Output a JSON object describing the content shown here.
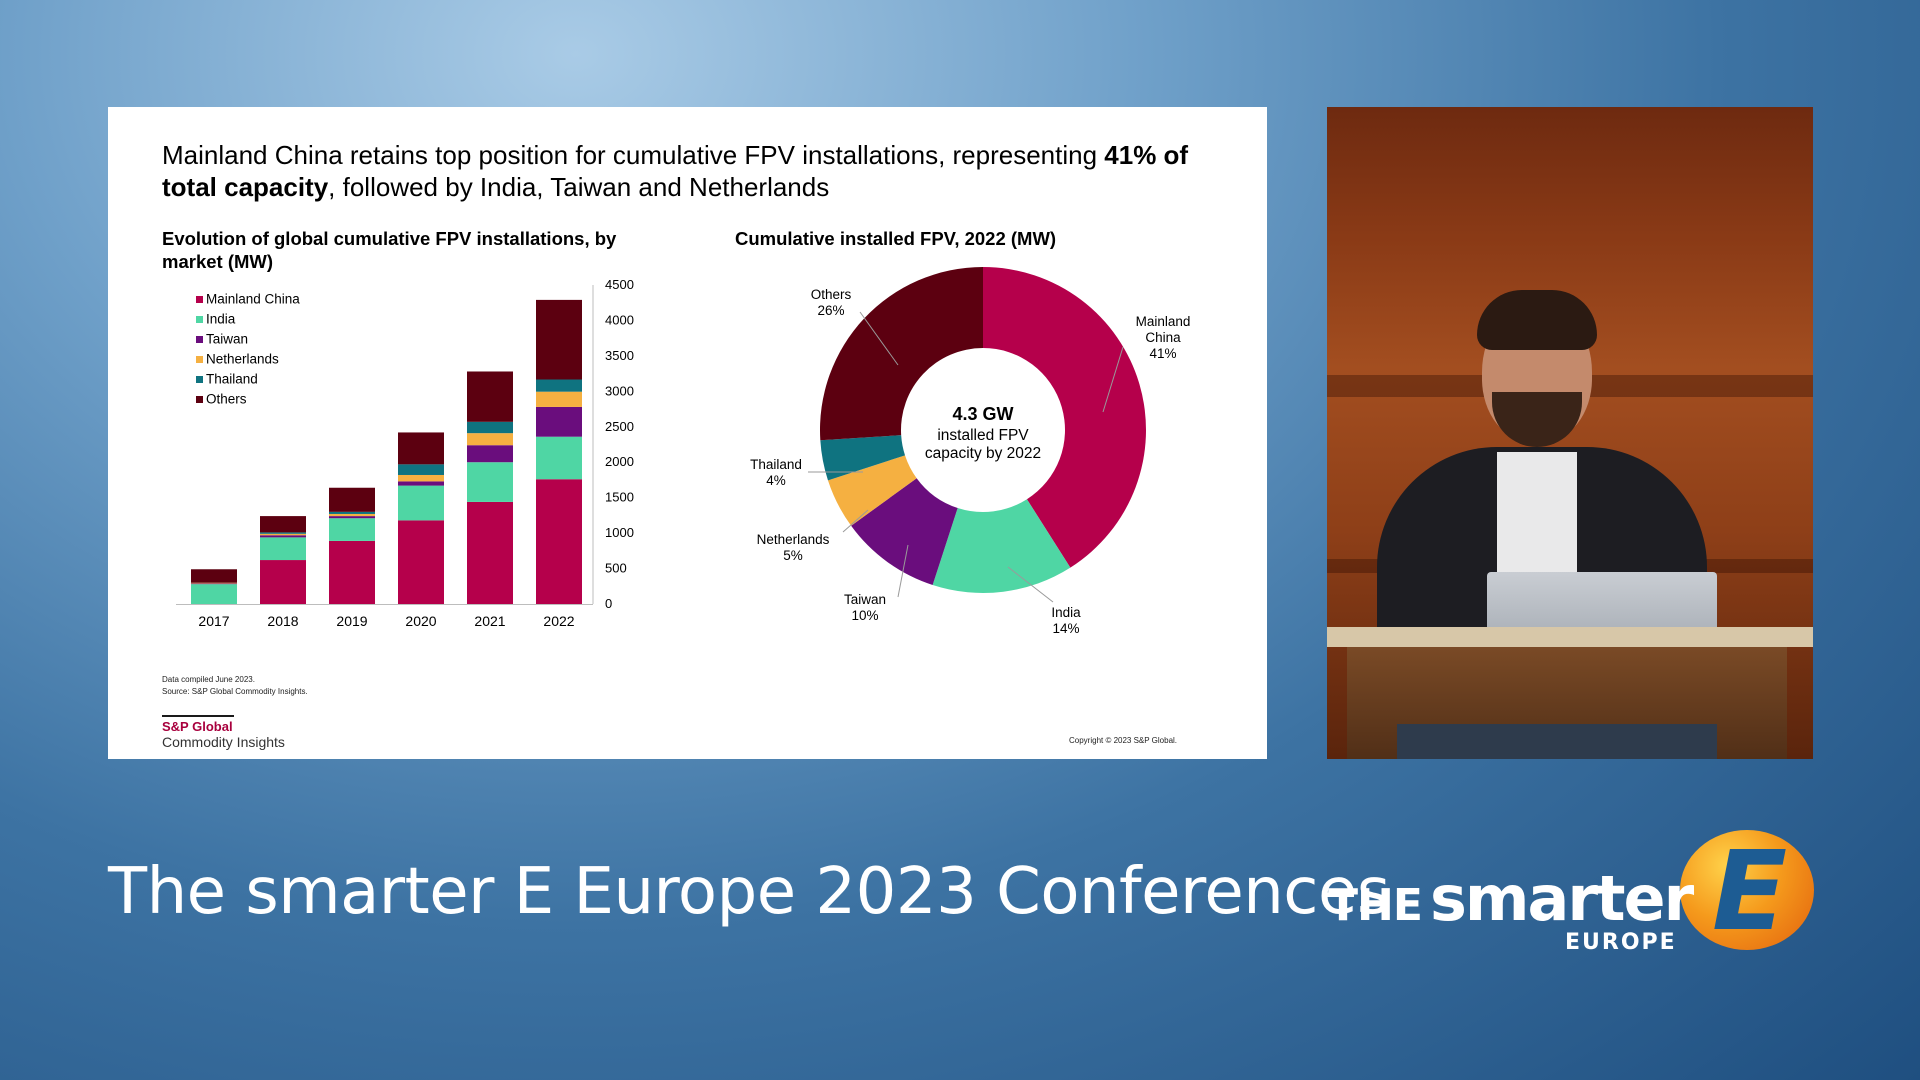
{
  "slide": {
    "headline_part1": "Mainland China retains top position for cumulative FPV installations, representing ",
    "headline_bold": "41% of total capacity",
    "headline_part2": ", followed by India, Taiwan and Netherlands",
    "note_compiled": "Data compiled June 2023.",
    "note_source": "Source: S&P Global Commodity Insights.",
    "brand_name": "S&P Global",
    "brand_sub": "Commodity Insights",
    "copyright": "Copyright © 2023 S&P Global."
  },
  "footer": {
    "conference_title": "The smarter E Europe 2023 Conferences",
    "logo_the": "THE",
    "logo_smarter": "smarter",
    "logo_europe": "EUROPE",
    "logo_letter": "E"
  },
  "chart_data": [
    {
      "type": "bar",
      "stacked": true,
      "title": "Evolution of global cumulative FPV installations, by market (MW)",
      "categories": [
        "2017",
        "2018",
        "2019",
        "2020",
        "2021",
        "2022"
      ],
      "series": [
        {
          "name": "Mainland China",
          "color": "#b5004b",
          "values": [
            0,
            620,
            890,
            1180,
            1440,
            1760
          ]
        },
        {
          "name": "India",
          "color": "#4fd6a4",
          "values": [
            280,
            320,
            320,
            490,
            560,
            600
          ]
        },
        {
          "name": "Taiwan",
          "color": "#6a0d7d",
          "values": [
            10,
            30,
            30,
            60,
            240,
            420
          ]
        },
        {
          "name": "Netherlands",
          "color": "#f5b041",
          "values": [
            10,
            20,
            30,
            90,
            170,
            215
          ]
        },
        {
          "name": "Thailand",
          "color": "#0f7380",
          "values": [
            0,
            20,
            30,
            150,
            160,
            172
          ]
        },
        {
          "name": "Others",
          "color": "#5c0010",
          "values": [
            190,
            230,
            340,
            450,
            710,
            1123
          ]
        }
      ],
      "yticks": [
        0,
        500,
        1000,
        1500,
        2000,
        2500,
        3000,
        3500,
        4000,
        4500
      ],
      "ylim": [
        0,
        4500
      ],
      "y_axis_side": "right",
      "legend": "top-left"
    },
    {
      "type": "pie",
      "donut": true,
      "title": "Cumulative installed FPV, 2022 (MW)",
      "center_value": "4.3 GW",
      "center_text_1": "installed FPV",
      "center_text_2": "capacity by 2022",
      "slices": [
        {
          "label_1": "Mainland",
          "label_2": "China",
          "pct_label": "41%",
          "value": 41,
          "color": "#b5004b"
        },
        {
          "label_1": "India",
          "label_2": "",
          "pct_label": "14%",
          "value": 14,
          "color": "#4fd6a4"
        },
        {
          "label_1": "Taiwan",
          "label_2": "",
          "pct_label": "10%",
          "value": 10,
          "color": "#6a0d7d"
        },
        {
          "label_1": "Netherlands",
          "label_2": "",
          "pct_label": "5%",
          "value": 5,
          "color": "#f5b041"
        },
        {
          "label_1": "Thailand",
          "label_2": "",
          "pct_label": "4%",
          "value": 4,
          "color": "#0f7380"
        },
        {
          "label_1": "Others",
          "label_2": "",
          "pct_label": "26%",
          "value": 26,
          "color": "#5c0010"
        }
      ]
    }
  ]
}
